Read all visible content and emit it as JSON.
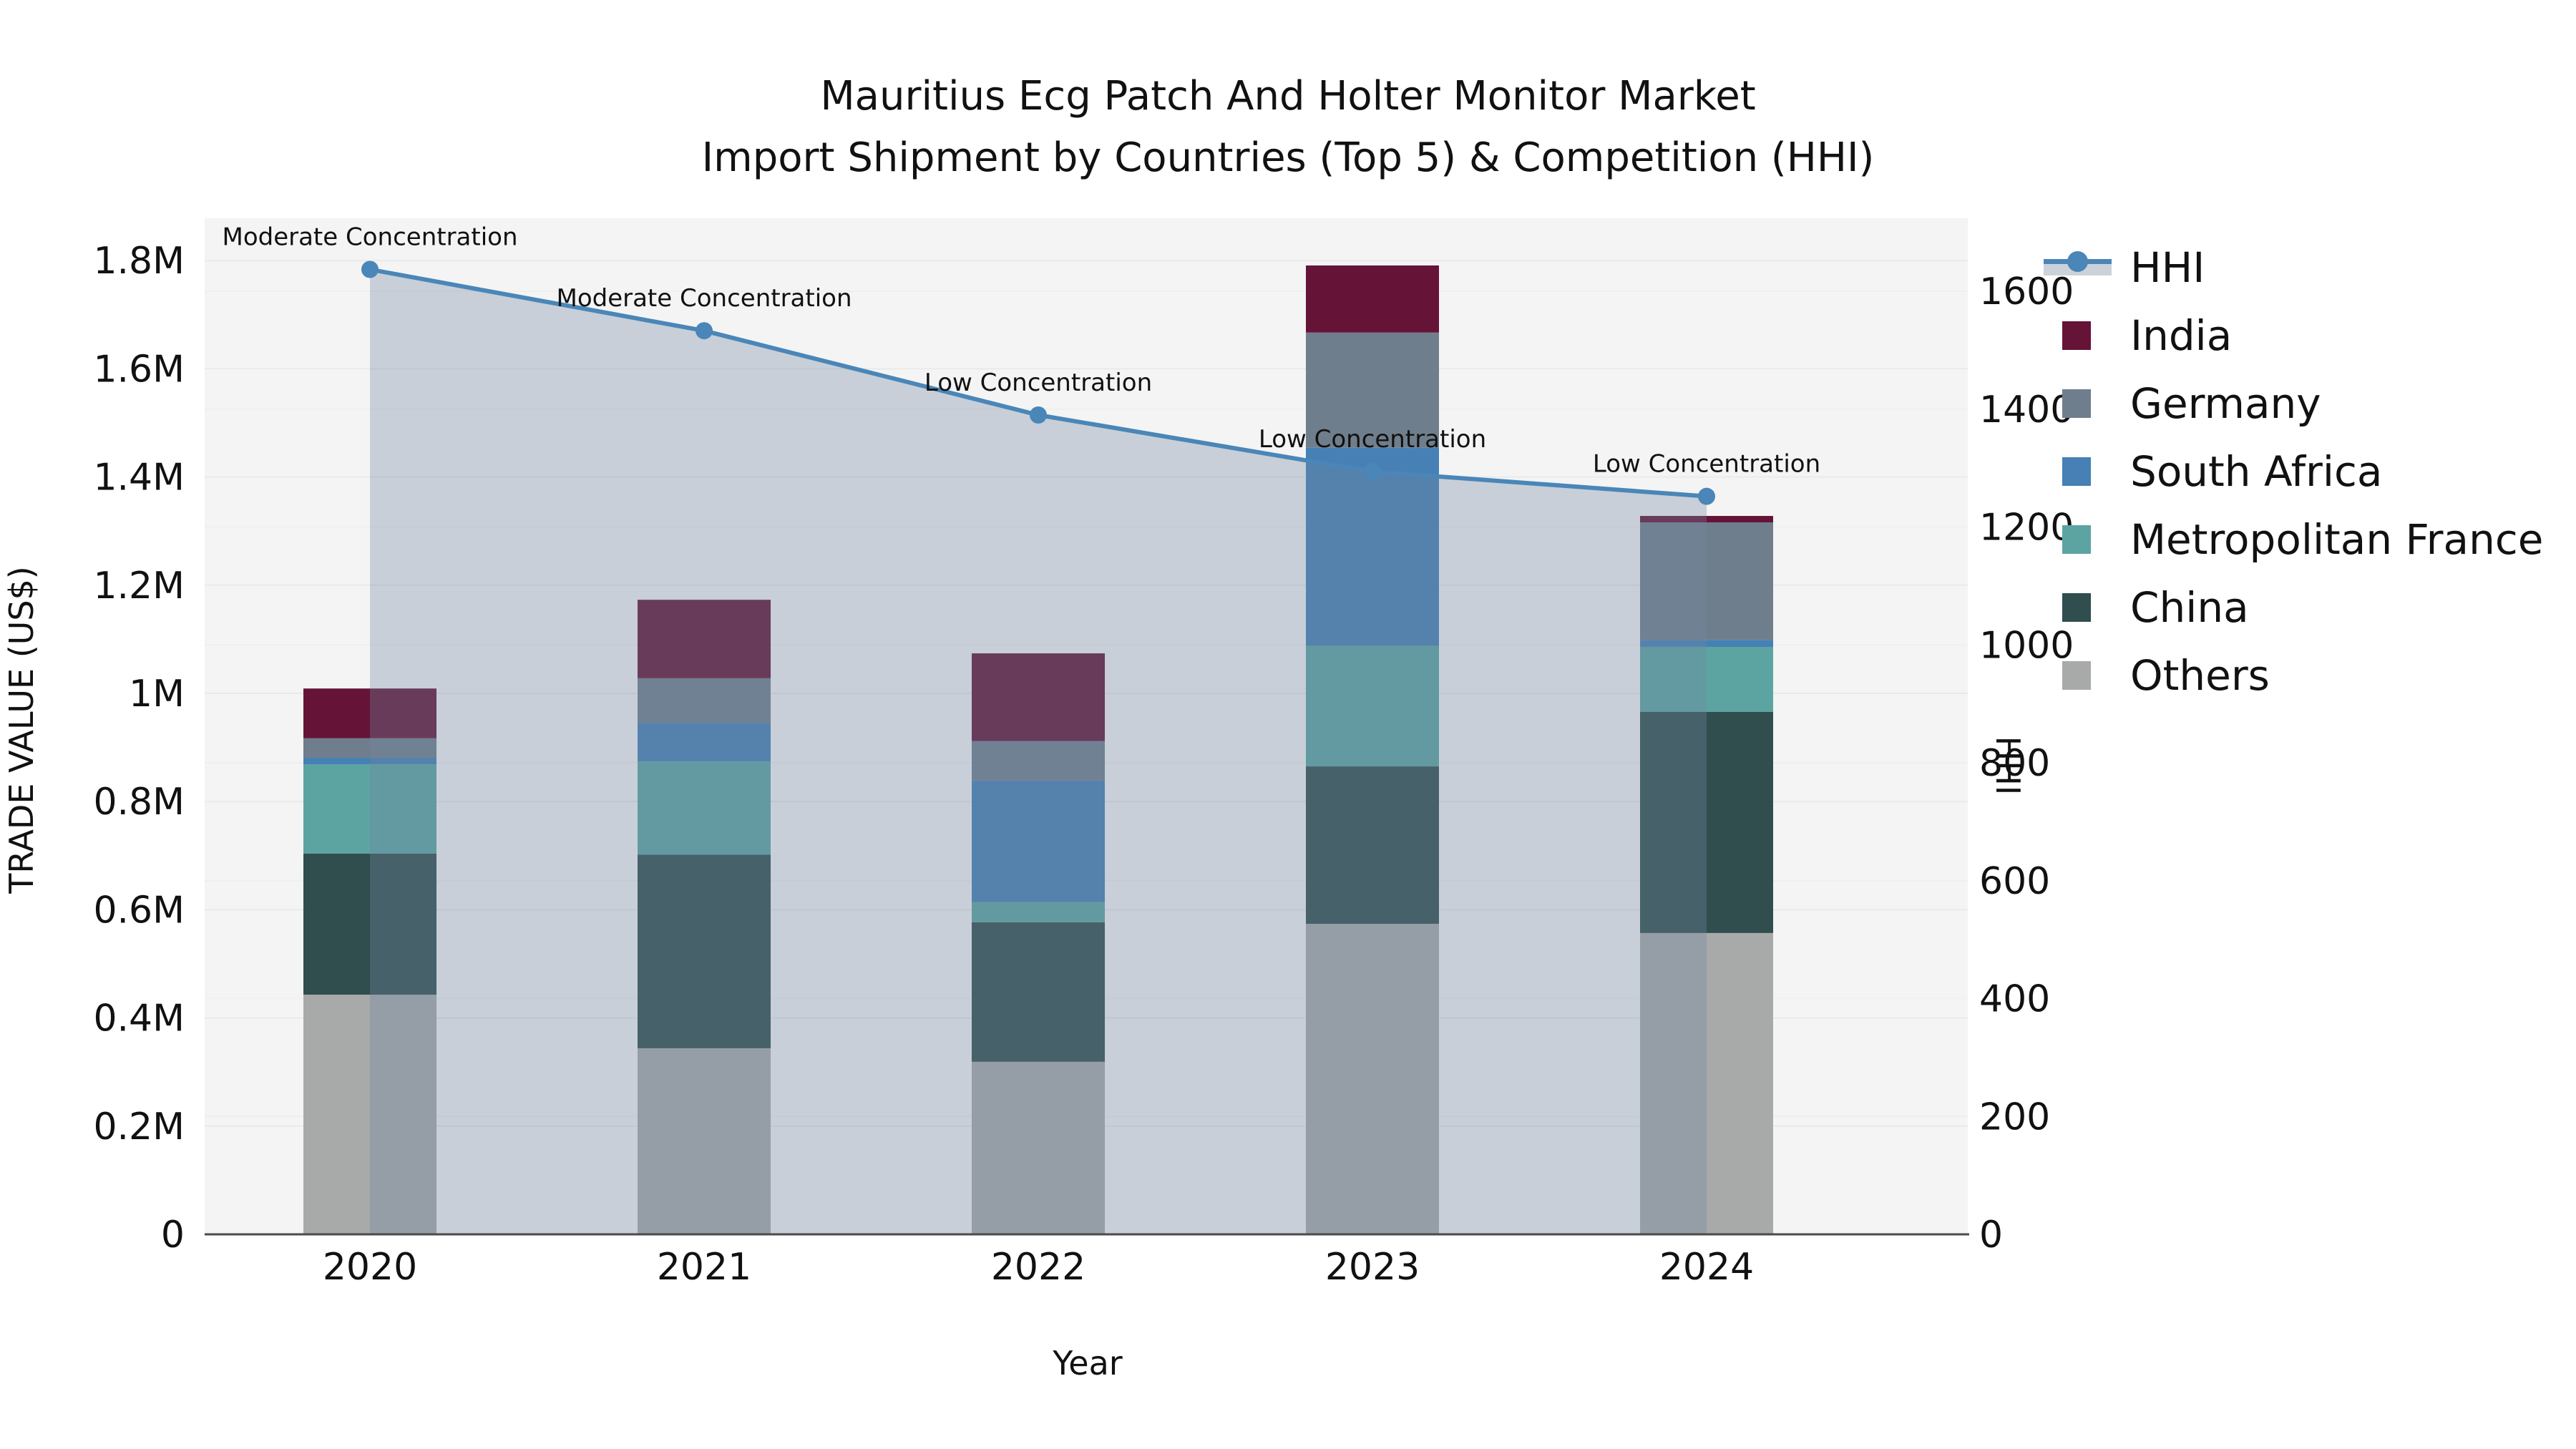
{
  "title": {
    "line1": "Mauritius Ecg Patch And Holter Monitor Market",
    "line2": "Import Shipment by Countries (Top 5) & Competition (HHI)"
  },
  "axes": {
    "left_label": "TRADE VALUE (US$)",
    "right_label": "HHI",
    "x_label": "Year"
  },
  "legend": {
    "items": [
      {
        "label": "HHI",
        "swatch": "line",
        "color": "#4A86B8",
        "band": "#CCD2DA"
      },
      {
        "label": "India",
        "swatch": "square",
        "color": "#651437"
      },
      {
        "label": "Germany",
        "swatch": "square",
        "color": "#6F7E8C"
      },
      {
        "label": "South Africa",
        "swatch": "square",
        "color": "#4680B4"
      },
      {
        "label": "Metropolitan France",
        "swatch": "square",
        "color": "#5CA4A1"
      },
      {
        "label": "China",
        "swatch": "square",
        "color": "#2F4E4D"
      },
      {
        "label": "Others",
        "swatch": "square",
        "color": "#A8AAA9"
      }
    ]
  },
  "chart_data": {
    "type": "bar",
    "subtype": "stacked-bars-with-line-on-secondary-axis",
    "title": "Mauritius Ecg Patch And Holter Monitor Market — Import Shipment by Countries (Top 5) & Competition (HHI)",
    "categories": [
      2020,
      2021,
      2022,
      2023,
      2024
    ],
    "series": [
      {
        "name": "India",
        "color": "#651437",
        "values": [
          92000,
          145000,
          162000,
          124000,
          12000
        ]
      },
      {
        "name": "Germany",
        "color": "#6F7E8C",
        "values": [
          36000,
          83000,
          73000,
          213000,
          217000
        ]
      },
      {
        "name": "South Africa",
        "color": "#4680B4",
        "values": [
          12000,
          71000,
          225000,
          366000,
          13000
        ]
      },
      {
        "name": "Metropolitan France",
        "color": "#5CA4A1",
        "values": [
          165000,
          172000,
          37000,
          223000,
          120000
        ]
      },
      {
        "name": "China",
        "color": "#2F4E4D",
        "values": [
          261000,
          358000,
          258000,
          291000,
          409000
        ]
      },
      {
        "name": "Others",
        "color": "#A8AAA9",
        "values": [
          443000,
          344000,
          319000,
          574000,
          557000
        ]
      }
    ],
    "stack_order_bottom_to_top": [
      "Others",
      "China",
      "Metropolitan France",
      "South Africa",
      "Germany",
      "India"
    ],
    "bar_totals": [
      1009000,
      1173000,
      1074000,
      1791000,
      1328000
    ],
    "line_series": {
      "name": "HHI",
      "axis": "right",
      "color": "#4A86B8",
      "area_color": "#7387A0",
      "area_alpha": 0.34,
      "values": [
        1637,
        1533,
        1390,
        1294,
        1252
      ]
    },
    "annotations": [
      "Moderate Concentration",
      "Moderate Concentration",
      "Low Concentration",
      "Low Concentration",
      "Low Concentration"
    ],
    "xlabel": "Year",
    "ylabel": "TRADE VALUE (US$)",
    "ylabel_right": "HHI",
    "y_left_ticks": {
      "labels": [
        "0",
        "0.2M",
        "0.4M",
        "0.6M",
        "0.8M",
        "1M",
        "1.2M",
        "1.4M",
        "1.6M",
        "1.8M"
      ],
      "values": [
        0,
        200000,
        400000,
        600000,
        800000,
        1000000,
        1200000,
        1400000,
        1600000,
        1800000
      ]
    },
    "y_right_ticks": {
      "labels": [
        "0",
        "200",
        "400",
        "600",
        "800",
        "1000",
        "1200",
        "1400",
        "1600"
      ],
      "values": [
        0,
        200,
        400,
        600,
        800,
        1000,
        1200,
        1400,
        1600
      ]
    },
    "ylim_left": [
      0,
      1878000
    ],
    "ylim_right": [
      0,
      1724
    ],
    "grid": true,
    "legend_position": "right"
  },
  "colors": {
    "plot_bg": "#F4F4F4",
    "grid": "#E9E9E9",
    "grid_minor": "#EFEFEF",
    "axis_line": "#4A4A4A",
    "text": "#111111"
  }
}
